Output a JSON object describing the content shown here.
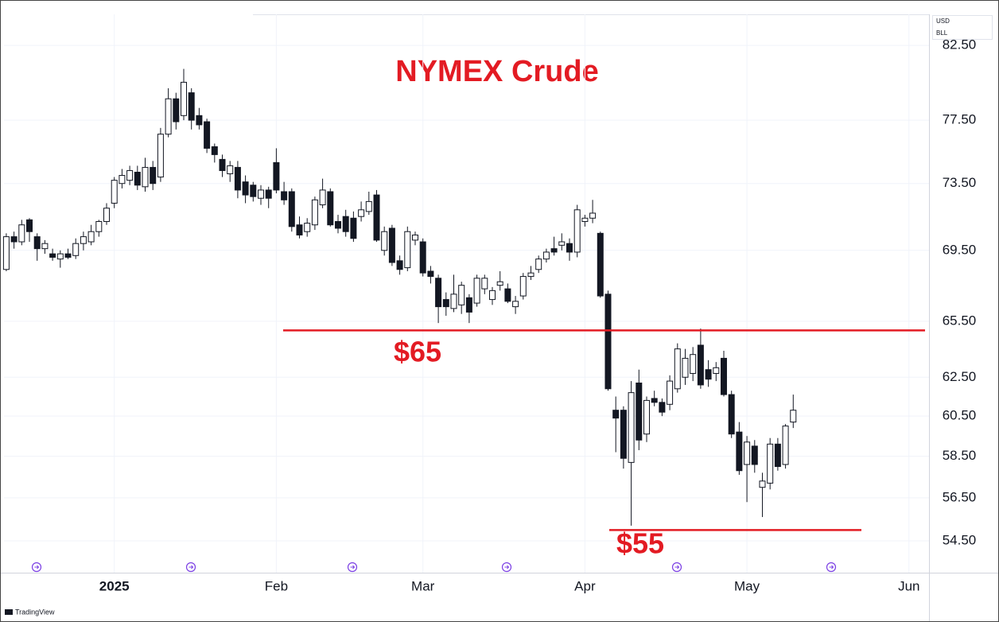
{
  "chart_data": {
    "type": "candlestick",
    "title": "NYMEX Crude",
    "currency": "USD",
    "unit": "BLL",
    "watermark": "TradingView",
    "open": [
      68.4,
      70.3,
      70.0,
      71.3,
      70.3,
      69.6,
      69.3,
      69.0,
      69.3,
      69.2,
      69.9,
      70.0,
      70.6,
      71.2,
      72.3,
      73.5,
      73.7,
      74.2,
      73.3,
      74.5,
      73.9,
      76.6,
      78.9,
      77.8,
      79.3,
      77.8,
      77.4,
      75.8,
      75.0,
      74.1,
      74.5,
      73.6,
      73.4,
      72.6,
      73.1,
      74.8,
      73.0,
      73.0,
      71.0,
      70.6,
      71.0,
      72.2,
      73.0,
      71.2,
      71.5,
      71.4,
      71.5,
      71.8,
      72.8,
      69.5,
      70.8,
      68.9,
      68.5,
      70.1,
      70.0,
      68.3,
      67.9,
      66.7,
      66.2,
      66.4,
      66.8,
      66.5,
      67.3,
      66.7,
      67.5,
      67.3,
      66.3,
      66.9,
      68.0,
      68.4,
      69.0,
      69.6,
      69.8,
      69.9,
      69.4,
      71.2,
      71.4,
      70.5,
      67.0,
      60.8,
      60.8,
      58.2,
      62.2,
      59.6,
      61.4,
      61.2,
      61.1,
      61.9,
      62.5,
      62.7,
      64.2,
      62.9,
      62.7,
      63.5,
      61.6,
      59.7,
      58.1,
      59.0,
      57.0,
      57.2,
      59.1,
      58.1,
      60.2
    ],
    "high": [
      70.5,
      70.6,
      71.3,
      71.4,
      70.5,
      70.1,
      69.6,
      69.5,
      69.6,
      70.2,
      70.6,
      71.0,
      71.3,
      72.3,
      73.9,
      74.4,
      74.6,
      74.6,
      75.1,
      74.9,
      77.0,
      79.6,
      79.3,
      80.9,
      79.6,
      78.3,
      77.6,
      76.0,
      75.3,
      74.9,
      74.9,
      74.0,
      73.6,
      73.4,
      73.3,
      75.7,
      73.6,
      73.2,
      71.5,
      71.4,
      72.7,
      73.8,
      73.2,
      71.6,
      71.9,
      71.8,
      72.4,
      73.0,
      73.1,
      70.9,
      71.0,
      69.2,
      70.9,
      70.6,
      70.2,
      68.6,
      68.1,
      67.1,
      68.1,
      67.7,
      67.0,
      68.1,
      68.1,
      67.4,
      68.3,
      67.6,
      66.9,
      68.2,
      68.6,
      69.2,
      69.6,
      70.3,
      70.5,
      70.2,
      72.2,
      71.6,
      72.5,
      70.6,
      67.2,
      61.5,
      61.0,
      62.3,
      62.9,
      61.5,
      61.8,
      61.4,
      62.6,
      64.3,
      64.0,
      64.1,
      65.1,
      63.4,
      63.3,
      63.9,
      61.8,
      60.2,
      59.5,
      59.3,
      57.7,
      59.4,
      59.4,
      60.1,
      61.6
    ],
    "low": [
      68.3,
      69.6,
      69.8,
      70.0,
      68.9,
      69.3,
      68.9,
      68.5,
      69.0,
      69.0,
      69.5,
      69.8,
      70.3,
      71.0,
      72.0,
      73.2,
      73.4,
      73.1,
      73.0,
      73.1,
      73.6,
      76.4,
      76.9,
      77.5,
      76.9,
      76.9,
      75.4,
      74.8,
      73.9,
      73.6,
      72.6,
      72.3,
      72.4,
      72.2,
      72.0,
      72.9,
      72.2,
      70.6,
      70.2,
      70.3,
      70.7,
      72.0,
      70.9,
      70.5,
      70.3,
      70.0,
      71.2,
      71.6,
      70.0,
      69.2,
      68.6,
      68.1,
      68.3,
      69.8,
      68.0,
      67.6,
      65.4,
      65.8,
      66.0,
      65.9,
      65.4,
      66.3,
      67.0,
      66.4,
      67.2,
      66.5,
      65.9,
      66.7,
      67.8,
      68.2,
      68.8,
      69.2,
      69.5,
      68.9,
      69.1,
      70.9,
      71.1,
      66.8,
      61.8,
      58.7,
      57.9,
      55.2,
      58.8,
      59.2,
      61.0,
      60.5,
      60.8,
      61.7,
      62.1,
      62.3,
      61.9,
      62.0,
      62.3,
      61.5,
      59.4,
      57.6,
      56.3,
      57.7,
      55.6,
      56.9,
      57.8,
      57.9,
      59.9
    ],
    "close": [
      70.3,
      70.0,
      71.0,
      70.6,
      69.6,
      69.9,
      69.1,
      69.3,
      69.1,
      69.9,
      70.3,
      70.6,
      71.2,
      72.0,
      73.7,
      74.0,
      74.3,
      73.4,
      74.5,
      73.5,
      76.6,
      78.9,
      77.4,
      80.0,
      77.5,
      77.2,
      75.7,
      75.3,
      74.3,
      74.6,
      73.1,
      72.8,
      72.7,
      73.1,
      72.6,
      73.1,
      72.5,
      70.9,
      70.4,
      71.1,
      72.5,
      73.1,
      71.0,
      70.8,
      70.6,
      70.2,
      71.9,
      72.4,
      70.1,
      70.6,
      68.8,
      68.4,
      70.6,
      70.4,
      68.2,
      68.0,
      66.3,
      66.3,
      67.0,
      67.5,
      66.0,
      67.9,
      67.9,
      67.2,
      67.7,
      66.6,
      66.6,
      68.0,
      68.2,
      69.0,
      69.4,
      69.4,
      70.0,
      69.4,
      71.9,
      71.4,
      71.7,
      66.9,
      61.9,
      60.4,
      58.4,
      61.7,
      59.3,
      61.3,
      61.2,
      60.7,
      62.3,
      64.0,
      63.5,
      63.7,
      62.1,
      62.4,
      63.0,
      61.6,
      59.6,
      57.8,
      59.2,
      58.1,
      57.3,
      59.1,
      58.0,
      60.0,
      60.8
    ],
    "colors": {
      "up": "#ffffff",
      "down": "#131722",
      "outline": "#131722",
      "annotation": "#e31b23"
    },
    "log_scale": true,
    "grid": true,
    "ylim": [
      53.07,
      84.68
    ],
    "yticks": [
      {
        "value": 54.5,
        "label": "54.50"
      },
      {
        "value": 56.5,
        "label": "56.50"
      },
      {
        "value": 58.5,
        "label": "58.50"
      },
      {
        "value": 60.5,
        "label": "60.50"
      },
      {
        "value": 62.5,
        "label": "62.50"
      },
      {
        "value": 65.5,
        "label": "65.50"
      },
      {
        "value": 69.5,
        "label": "69.50"
      },
      {
        "value": 73.5,
        "label": "73.50"
      },
      {
        "value": 77.5,
        "label": "77.50"
      },
      {
        "value": 82.5,
        "label": "82.50"
      }
    ],
    "xlim": [
      -0.3,
      119.6
    ],
    "xticks": [
      {
        "value": 14,
        "label": "2025"
      },
      {
        "value": 35,
        "label": "Feb"
      },
      {
        "value": 54,
        "label": "Mar"
      },
      {
        "value": 75,
        "label": "Apr"
      },
      {
        "value": 96,
        "label": "May"
      },
      {
        "value": 117,
        "label": "Jun"
      }
    ],
    "annotations": [
      {
        "label": "$65",
        "value": 65
      },
      {
        "label": "$55",
        "value": 55
      }
    ]
  }
}
